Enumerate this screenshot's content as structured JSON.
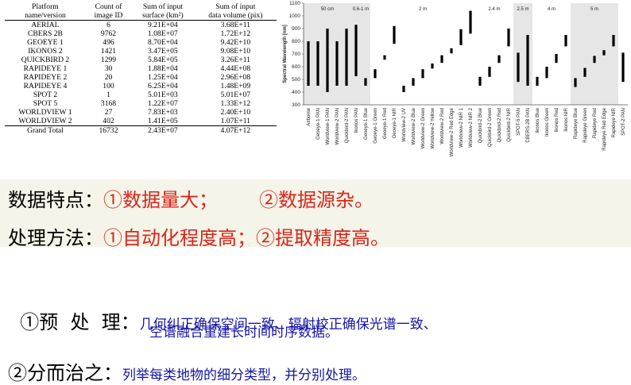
{
  "table": {
    "headers": [
      "Platform\nname/version",
      "Count of\nimage ID",
      "Sum of input\nsurface (km²)",
      "Sum of input\ndata volume (pix)"
    ],
    "rows": [
      [
        "AERIAL",
        "6",
        "9.21E+04",
        "3.68E+11"
      ],
      [
        "CBERS 2B",
        "9762",
        "1.08E+07",
        "1.72E+12"
      ],
      [
        "GEOEYE 1",
        "496",
        "8.70E+04",
        "9.42E+10"
      ],
      [
        "IKONOS 2",
        "1421",
        "3.47E+05",
        "9.08E+10"
      ],
      [
        "QUICKBIRD 2",
        "1299",
        "5.84E+05",
        "3.26E+11"
      ],
      [
        "RAPIDEYE 1",
        "30",
        "1.88E+04",
        "4.44E+08"
      ],
      [
        "RAPIDEYE 2",
        "20",
        "1.25E+04",
        "2.96E+08"
      ],
      [
        "RAPIDEYE 4",
        "100",
        "6.25E+04",
        "1.48E+09"
      ],
      [
        "SPOT 2",
        "1",
        "5.01E+03",
        "5.01E+07"
      ],
      [
        "SPOT 5",
        "3168",
        "1.22E+07",
        "1.33E+12"
      ],
      [
        "WORLDVIEW 1",
        "27",
        "7.83E+03",
        "2.40E+10"
      ],
      [
        "WORLDVIEW 2",
        "402",
        "1.41E+05",
        "1.07E+11"
      ]
    ],
    "total": [
      "Grand Total",
      "16732",
      "2.43E+07",
      "4.07E+12"
    ]
  },
  "chart_data": {
    "type": "bar",
    "ylabel": "Spectral Wavelength [nm]",
    "ylim": [
      300,
      1100
    ],
    "yticks": [
      300,
      400,
      500,
      600,
      700,
      800,
      900,
      1000,
      1100
    ],
    "groups": [
      {
        "label": "50 cm",
        "start": 0,
        "end": 4,
        "shaded": true
      },
      {
        "label": "0.6-1 m",
        "start": 5,
        "end": 6,
        "shaded": true
      },
      {
        "label": "2 m",
        "start": 7,
        "end": 17,
        "shaded": false
      },
      {
        "label": "2.4 m",
        "start": 18,
        "end": 21,
        "shaded": false
      },
      {
        "label": "2.5 m",
        "start": 22,
        "end": 23,
        "shaded": true
      },
      {
        "label": "4 m",
        "start": 24,
        "end": 27,
        "shaded": false
      },
      {
        "label": "5 m",
        "start": 28,
        "end": 32,
        "shaded": true
      }
    ],
    "categories": [
      "Airborne",
      "Geoeye-1 PAN",
      "Worldview-1 PAN",
      "Worldview-2 PAN",
      "Quickbird-2 PAN",
      "Ikonos PAN",
      "Geoeye-1 Blue",
      "Geoeye-1 Green",
      "Geoeye-1 Red",
      "Geoeye-1 NIR",
      "Worldview-2 UV",
      "Worldview-2 Blue",
      "Worldview-2 Green",
      "Worldview-2 Yellow",
      "Worldview-2 Red",
      "Worldview-2 Red Edge",
      "Worldview-2 NIR 1",
      "Worldview-2 NIR 2",
      "Quickbird-2 Blue",
      "Quickbird-2 Green",
      "Quickbird-2 Red",
      "Quickbird-2 NIR",
      "SPOT-5 PAN",
      "CBERS-2B PAN",
      "Ikonos Blue",
      "Ikonos Green",
      "Ikonos Red",
      "Ikonos NIR",
      "Rapideye Blue",
      "Rapideye Green",
      "Rapideye Red",
      "Rapideye Red Edge",
      "Rapideye NIR",
      "SPOT-2 PAN"
    ],
    "ranges": [
      [
        450,
        800
      ],
      [
        450,
        800
      ],
      [
        400,
        900
      ],
      [
        450,
        800
      ],
      [
        450,
        900
      ],
      [
        525,
        930
      ],
      [
        450,
        510
      ],
      [
        510,
        580
      ],
      [
        655,
        690
      ],
      [
        780,
        920
      ],
      [
        400,
        450
      ],
      [
        450,
        510
      ],
      [
        510,
        580
      ],
      [
        585,
        625
      ],
      [
        630,
        690
      ],
      [
        705,
        745
      ],
      [
        770,
        895
      ],
      [
        860,
        1040
      ],
      [
        450,
        520
      ],
      [
        520,
        600
      ],
      [
        630,
        690
      ],
      [
        760,
        900
      ],
      [
        480,
        710
      ],
      [
        450,
        850
      ],
      [
        450,
        520
      ],
      [
        510,
        600
      ],
      [
        630,
        700
      ],
      [
        760,
        850
      ],
      [
        440,
        510
      ],
      [
        520,
        590
      ],
      [
        630,
        685
      ],
      [
        690,
        730
      ],
      [
        760,
        850
      ],
      [
        480,
        710
      ]
    ]
  },
  "slide": {
    "features_label": "数据特点：",
    "feature_1": "①数据量大；",
    "feature_2": "②数据源杂。",
    "methods_label": "处理方法：",
    "methods_text": "①自动化程度高；②提取精度高。",
    "pre_label": "①预  处  理：",
    "pre_line1": "几何纠正确保空间一致、辐射校正确保光谱一致、",
    "pre_line2": "空谱融合重建长时间时序数据。",
    "divide_label": "②分而治之：",
    "divide_text": "列举每类地物的细分类型，并分别处理。"
  },
  "colors": {
    "accent_red": "#d8261b",
    "accent_blue": "#1414a8",
    "band_bg": "#f4f4e9",
    "shade": "#e6e6e6"
  }
}
